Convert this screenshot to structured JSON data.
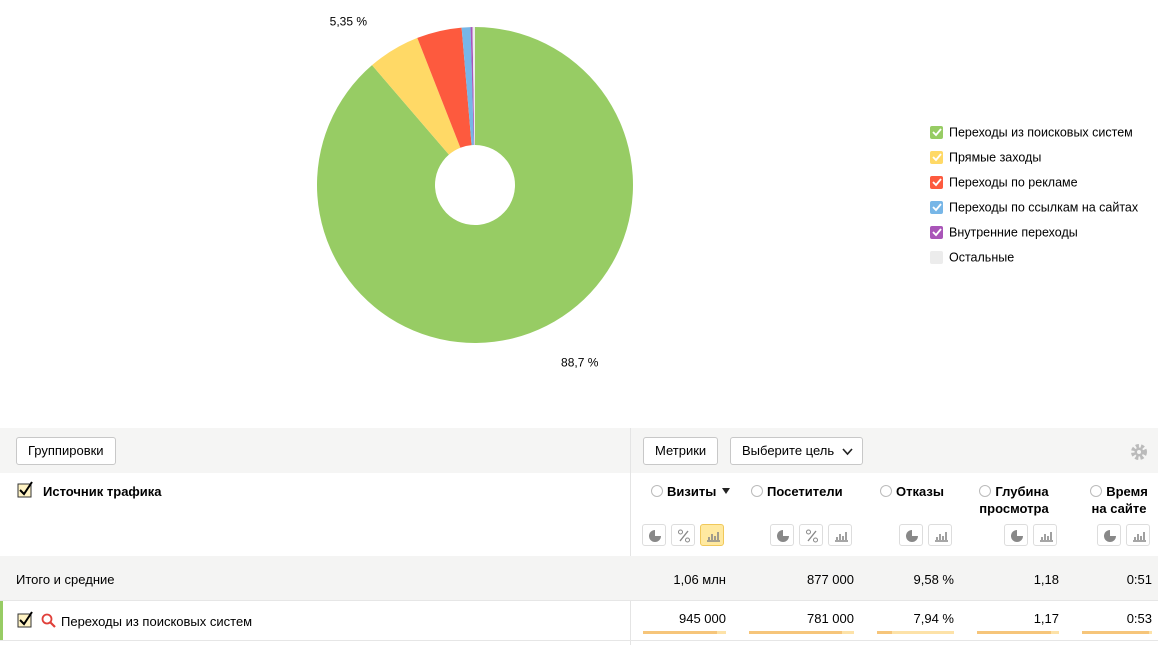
{
  "chart_data": {
    "type": "pie",
    "categories": [
      "Переходы из поисковых систем",
      "Прямые заходы",
      "Переходы по рекламе",
      "Переходы по ссылкам на сайтах",
      "Внутренние переходы",
      "Остальные"
    ],
    "values": [
      88.7,
      5.35,
      4.6,
      0.9,
      0.2,
      0.25
    ],
    "value_labels": [
      "88,7 %",
      "5,35 %",
      null,
      null,
      null,
      null
    ],
    "colors": [
      "#97cc64",
      "#ffd966",
      "#fd5a3e",
      "#77b6e7",
      "#a955b8",
      "#ececec"
    ],
    "legend": "right"
  },
  "toolbar": {
    "groupings": "Группировки",
    "metrics": "Метрики",
    "goal": "Выберите цель"
  },
  "table": {
    "dimension": "Источник трафика",
    "columns": [
      "Визиты",
      "Посетители",
      "Отказы",
      "Глубина просмотра",
      "Время на сайте"
    ],
    "rows": [
      {
        "label": "Итого и средние",
        "cells": [
          "1,06 млн",
          "877 000",
          "9,58 %",
          "1,18",
          "0:51"
        ]
      },
      {
        "label": "Переходы из поисковых систем",
        "cells": [
          "945 000",
          "781 000",
          "7,94 %",
          "1,17",
          "0:53"
        ]
      }
    ]
  }
}
